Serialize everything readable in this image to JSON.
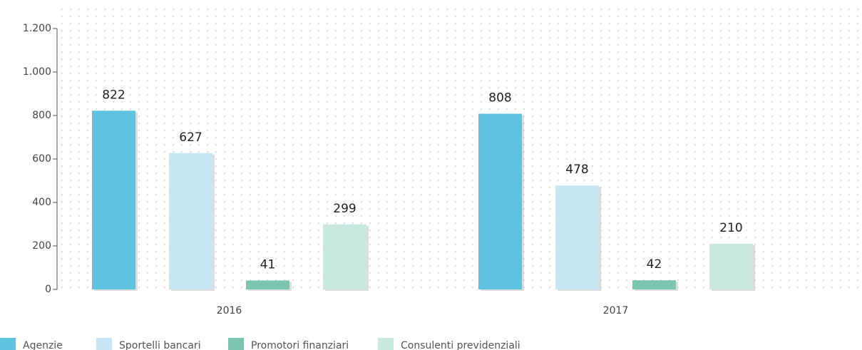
{
  "chart_data": {
    "type": "bar",
    "categories": [
      "2016",
      "2017"
    ],
    "series": [
      {
        "name": "Agenzie",
        "color": "#5fc3e0",
        "values": [
          822,
          808
        ]
      },
      {
        "name": "Sportelli bancari",
        "color": "#c6e6f3",
        "values": [
          627,
          478
        ]
      },
      {
        "name": "Promotori finanziari",
        "color": "#7cc5b0",
        "values": [
          41,
          42
        ]
      },
      {
        "name": "Consulenti previdenziali",
        "color": "#c9e8e0",
        "values": [
          299,
          210
        ]
      }
    ],
    "ylim": [
      0,
      1200
    ],
    "yticks": [
      0,
      200,
      400,
      600,
      800,
      {
        "value": 1000,
        "label": "1.000"
      },
      {
        "value": 1200,
        "label": "1.200"
      }
    ],
    "grid": false,
    "legend": "bottom"
  }
}
